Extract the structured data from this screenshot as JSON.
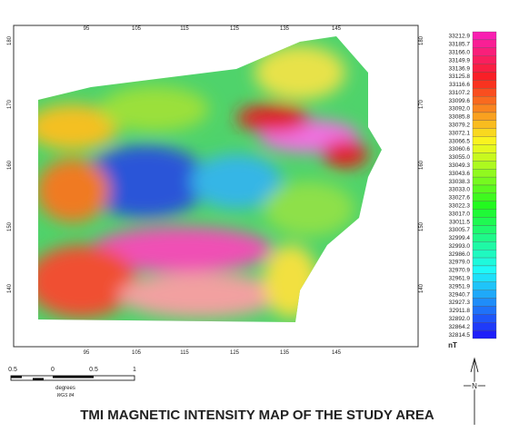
{
  "title": "TMI MAGNETIC INTENSITY MAP OF THE STUDY AREA",
  "axes": {
    "top": [
      "95",
      "105",
      "115",
      "125",
      "135",
      "145"
    ],
    "bottom": [
      "95",
      "105",
      "115",
      "125",
      "135",
      "145"
    ],
    "left": [
      "180",
      "170",
      "160",
      "150",
      "140"
    ],
    "right": [
      "180",
      "170",
      "160",
      "150",
      "140"
    ]
  },
  "legend": {
    "values": [
      "33212.9",
      "33185.7",
      "33166.0",
      "33149.9",
      "33136.9",
      "33125.8",
      "33116.6",
      "33107.2",
      "33099.6",
      "33092.0",
      "33085.8",
      "33079.2",
      "33072.1",
      "33066.5",
      "33060.6",
      "33055.0",
      "33049.3",
      "33043.6",
      "33038.3",
      "33033.0",
      "33027.6",
      "33022.3",
      "33017.0",
      "33011.5",
      "33005.7",
      "32999.4",
      "32993.0",
      "32986.0",
      "32979.0",
      "32970.9",
      "32961.9",
      "32951.9",
      "32940.7",
      "32927.3",
      "32911.8",
      "32892.0",
      "32864.2",
      "32814.5"
    ],
    "unit": "nT"
  },
  "scale_bar": {
    "labels": [
      "0.5",
      "0",
      "0.5",
      "1"
    ],
    "unit": "degrees",
    "datum": "WGS 84"
  },
  "north_arrow": "N"
}
